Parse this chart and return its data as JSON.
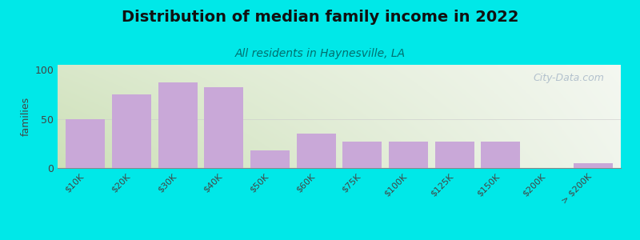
{
  "title": "Distribution of median family income in 2022",
  "subtitle": "All residents in Haynesville, LA",
  "ylabel": "families",
  "categories": [
    "$10K",
    "$20K",
    "$30K",
    "$40K",
    "$50K",
    "$60K",
    "$75K",
    "$100K",
    "$125K",
    "$150K",
    "$200K",
    "> $200K"
  ],
  "values": [
    50,
    75,
    87,
    82,
    18,
    35,
    27,
    27,
    27,
    27,
    0,
    5
  ],
  "bar_color": "#c9a8d8",
  "bar_edge_color": "#b898c8",
  "ylim": [
    0,
    105
  ],
  "yticks": [
    0,
    50,
    100
  ],
  "grid_color": "#cccccc",
  "outer_bg": "#00e8e8",
  "plot_bg_left": "#cde0b8",
  "plot_bg_right": "#f0f5ec",
  "title_fontsize": 14,
  "subtitle_color": "#007070",
  "subtitle_fontsize": 10,
  "watermark_text": "City-Data.com",
  "watermark_color": "#a8b8c8"
}
